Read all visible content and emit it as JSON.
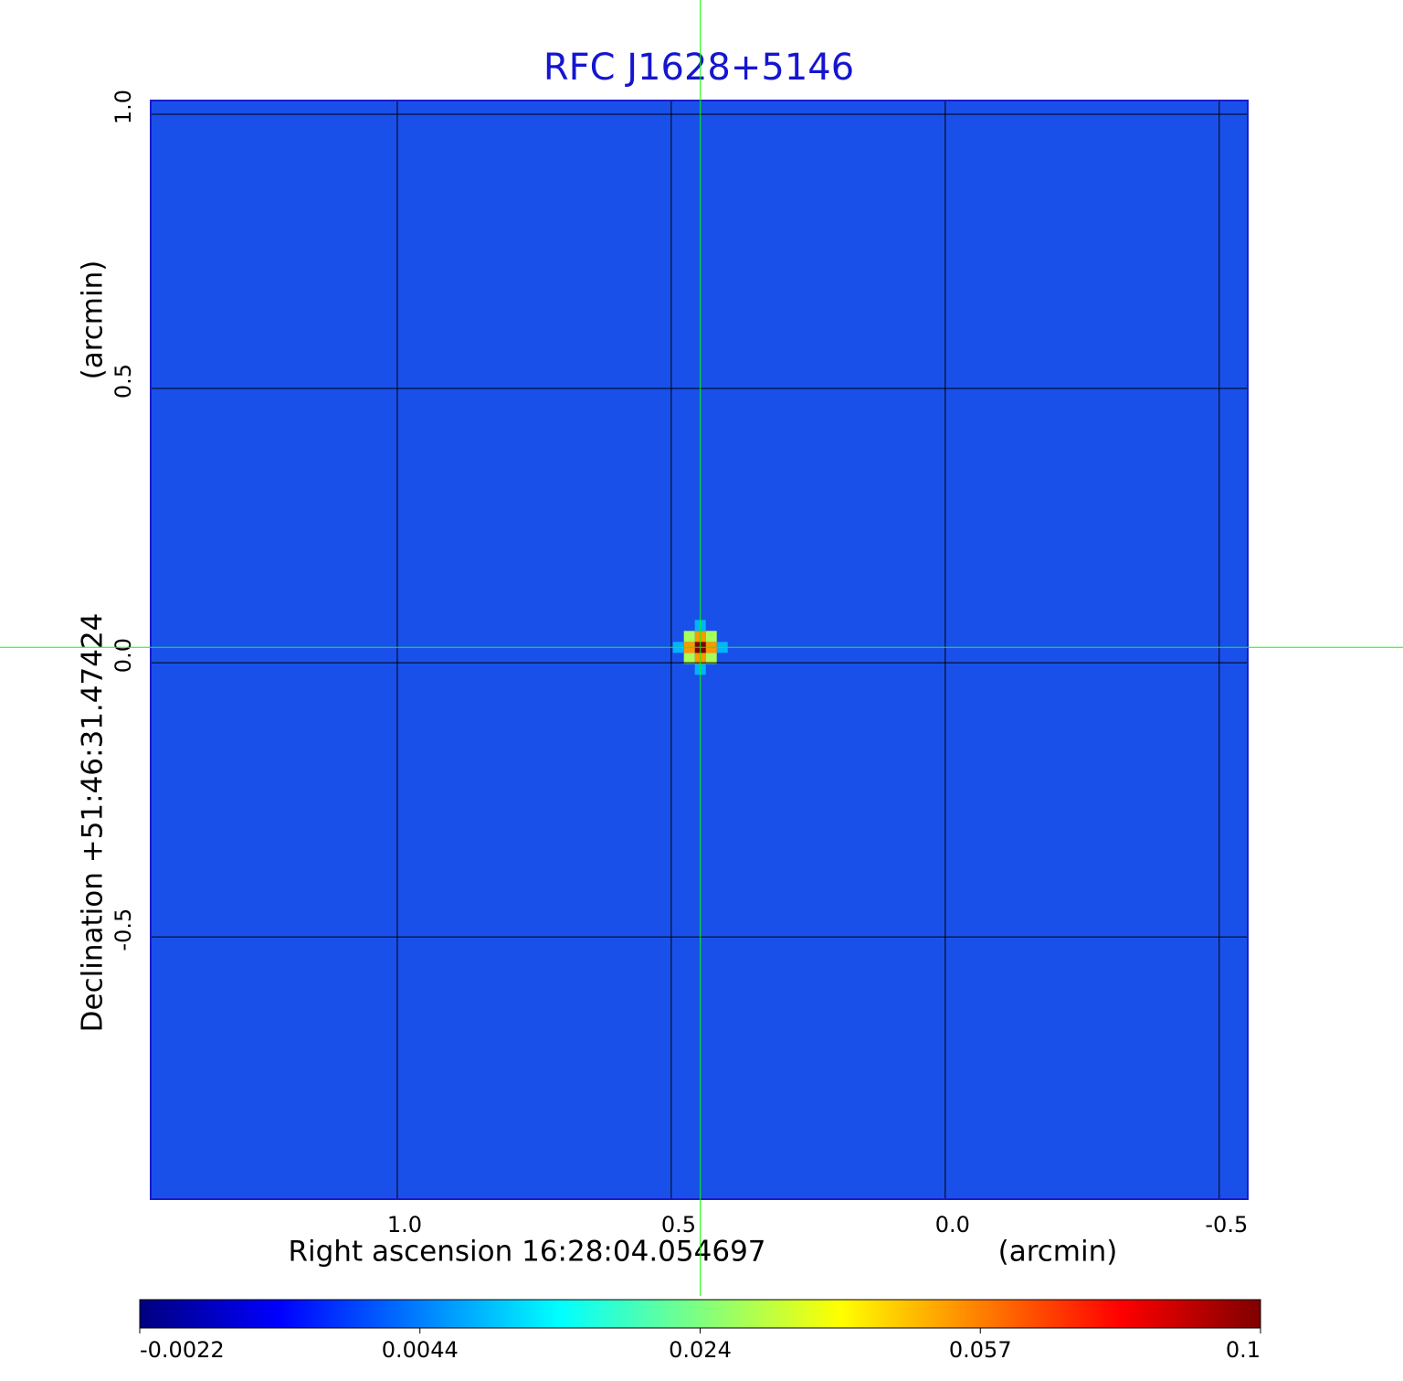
{
  "chart_data": {
    "type": "image",
    "title": "RFC J1628+5146",
    "x_label": "Right ascension  16:28:04.054697",
    "x_unit": "(arcmin)",
    "y_label": "Declination  +51:46:31.47424",
    "y_unit": "(arcmin)",
    "xlim": [
      1.45,
      -0.552
    ],
    "ylim": [
      -0.978,
      1.025
    ],
    "xticks": [
      {
        "value": 1,
        "label": "1.0"
      },
      0.5,
      {
        "value": 0,
        "label": "0.0"
      },
      -0.5
    ],
    "yticks": [
      {
        "value": 1,
        "label": "1.0"
      },
      0.5,
      {
        "value": 0,
        "label": "0.0"
      },
      -0.5
    ],
    "grid": true,
    "background_color": "#1a50ea",
    "source": {
      "x": 0.447,
      "y": 0.028,
      "peak": 0.1
    },
    "crosshair": {
      "x": 0.447,
      "y": 0.028,
      "color": "#00ff00"
    },
    "colorbar": {
      "ticks": [
        -0.0022,
        0.0044,
        0.024,
        0.057,
        0.1
      ],
      "colormap": [
        "#00007f",
        "#0000ff",
        "#007fff",
        "#00ffff",
        "#7fff7f",
        "#ffff00",
        "#ff7f00",
        "#ff0000",
        "#7f0000"
      ]
    }
  }
}
